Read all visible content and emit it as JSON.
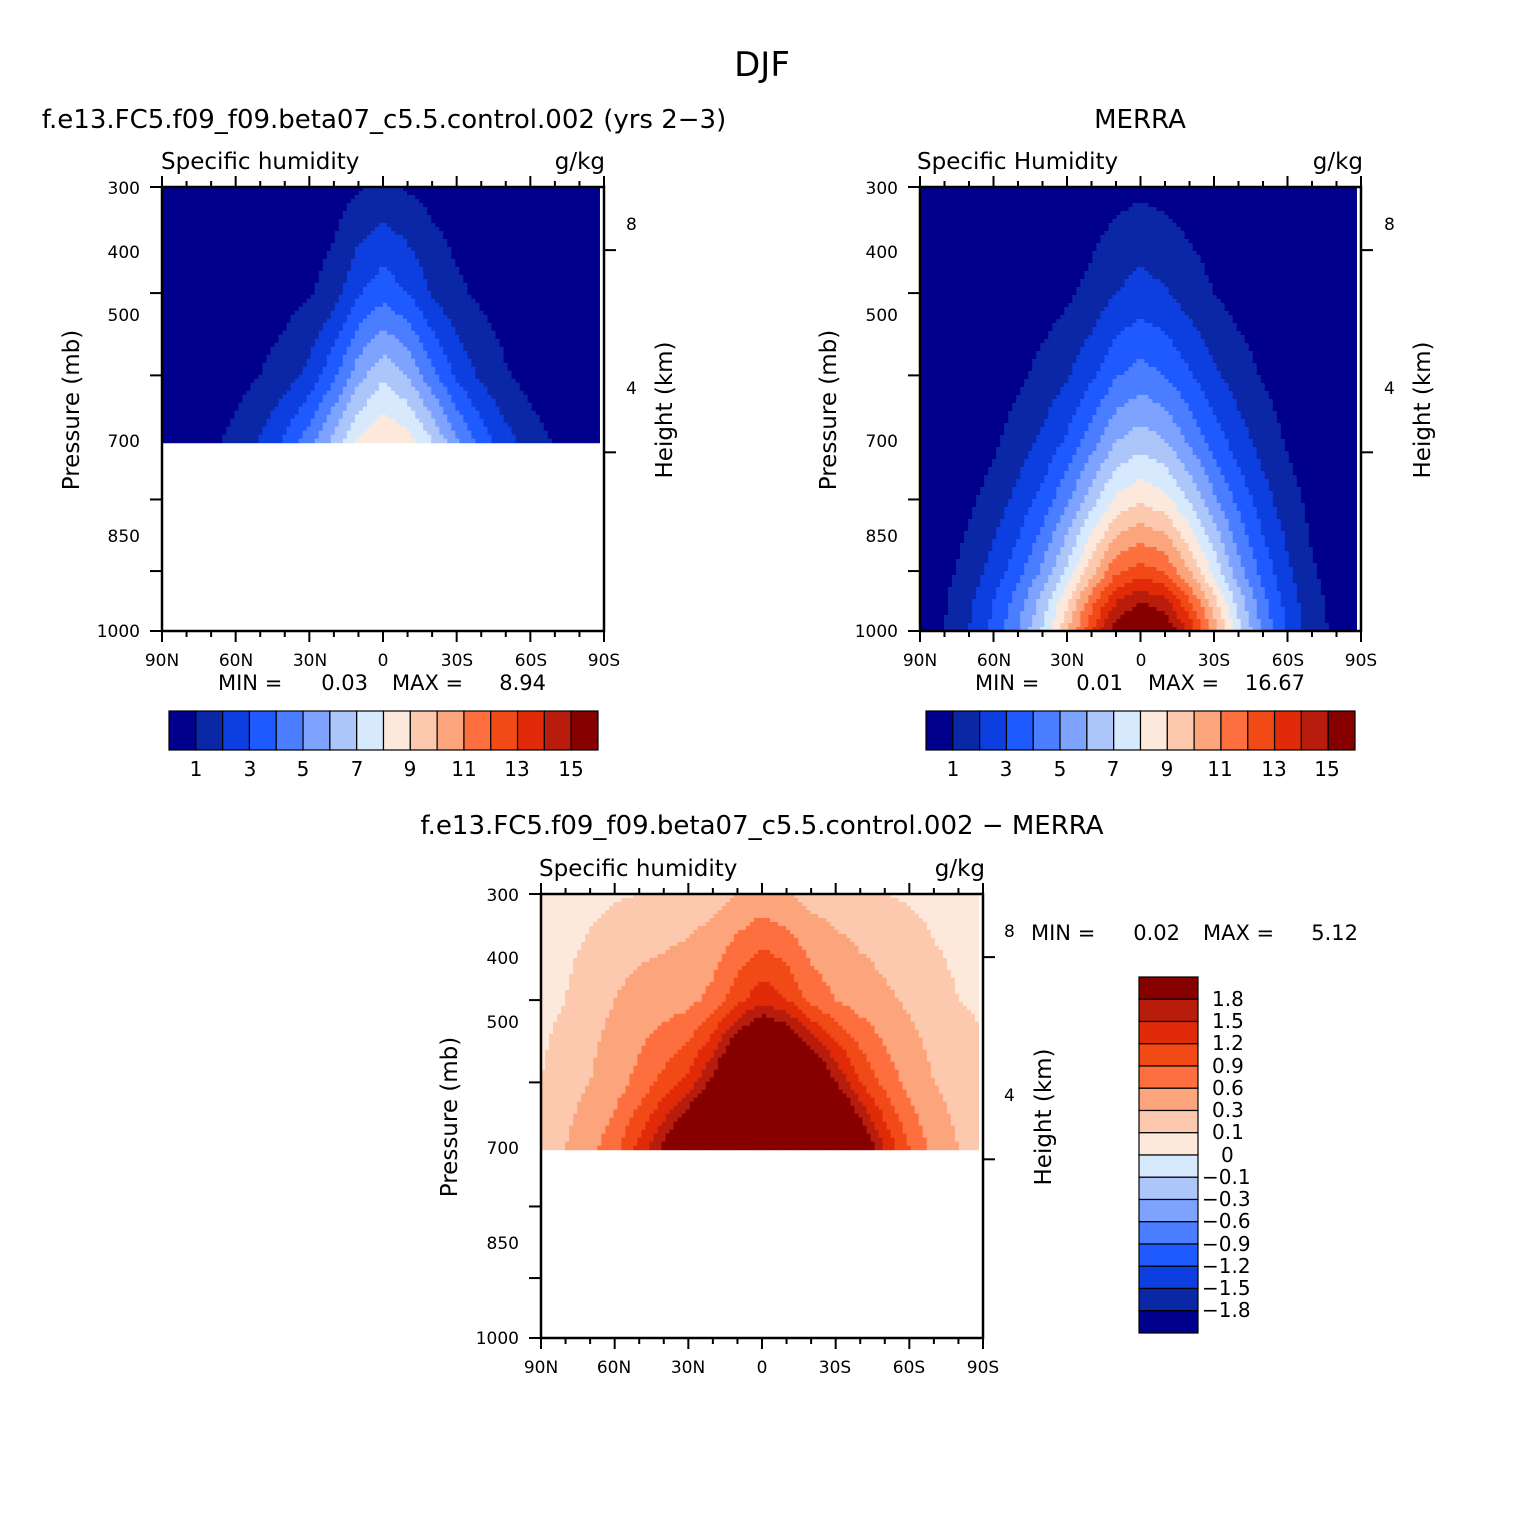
{
  "chart_data": {
    "title": "DJF",
    "colors": {
      "seq": [
        "#00008c",
        "#0a27a6",
        "#0c3ee0",
        "#1f5aff",
        "#4a7dff",
        "#7ea3ff",
        "#adc6fa",
        "#d6e9fd",
        "#fde9dc",
        "#fcc8ae",
        "#fca47b",
        "#fd6f3f",
        "#f14a17",
        "#e12b08",
        "#b71c0c",
        "#860000"
      ],
      "diff": [
        "#00008c",
        "#0a27a6",
        "#0c3ee0",
        "#1f5aff",
        "#4a7dff",
        "#7ea3ff",
        "#adc6fa",
        "#d6e9fd",
        "#fde9dc",
        "#fcc8ae",
        "#fca47b",
        "#fd6f3f",
        "#f14a17",
        "#e12b08",
        "#b71c0c",
        "#860000"
      ],
      "missing": "#ffffff"
    },
    "panels": [
      {
        "id": "model",
        "case_title": "f.e13.FC5.f09_f09.beta07_c5.5.control.002 (yrs 2−3)",
        "long_name": "Specific humidity",
        "units": "g/kg",
        "ylabel": "Pressure (mb)",
        "ylabel_right": "Height (km)",
        "xlabels": [
          "90N",
          "60N",
          "30N",
          "0",
          "30S",
          "60S",
          "90S"
        ],
        "plevels": [
          "300",
          "400",
          "500",
          "700",
          "850",
          "1000"
        ],
        "height_ticks": [
          "8",
          "4"
        ],
        "min_label": "MIN =",
        "min_value": "0.03",
        "max_label": "MAX =",
        "max_value": "8.94",
        "cb_ticks": [
          "1",
          "3",
          "5",
          "7",
          "9",
          "11",
          "13",
          "15"
        ],
        "data_bottom_pressure": 600,
        "field": {
          "lat": [
            90,
            80,
            70,
            60,
            50,
            40,
            30,
            20,
            10,
            0,
            -10,
            -20,
            -30,
            -40,
            -50,
            -60,
            -70,
            -80,
            -88
          ],
          "levels_mb": [
            300,
            400,
            500,
            600
          ],
          "values": [
            [
              0.03,
              0.04,
              0.06,
              0.09,
              0.14,
              0.2,
              0.3,
              0.5,
              0.9,
              1.2,
              0.9,
              0.6,
              0.4,
              0.25,
              0.15,
              0.1,
              0.07,
              0.05,
              0.04
            ],
            [
              0.04,
              0.05,
              0.12,
              0.22,
              0.4,
              0.6,
              0.9,
              1.5,
              2.9,
              3.6,
              3.0,
              1.9,
              1.2,
              0.8,
              0.5,
              0.3,
              0.18,
              0.12,
              0.08
            ],
            [
              0.1,
              0.15,
              0.3,
              0.6,
              1.0,
              1.5,
              2.3,
              3.8,
              5.6,
              6.8,
              6.0,
              4.3,
              2.8,
              1.8,
              1.1,
              0.6,
              0.35,
              0.2,
              0.12
            ],
            [
              0.3,
              0.5,
              0.8,
              1.3,
              2.1,
              3.2,
              4.6,
              6.4,
              8.2,
              8.94,
              8.5,
              7.1,
              5.2,
              3.6,
              2.4,
              1.5,
              0.9,
              0.5,
              0.3
            ]
          ]
        }
      },
      {
        "id": "obs",
        "case_title": "MERRA",
        "long_name": "Specific Humidity",
        "units": "g/kg",
        "ylabel": "Pressure (mb)",
        "ylabel_right": "Height (km)",
        "xlabels": [
          "90N",
          "60N",
          "30N",
          "0",
          "30S",
          "60S",
          "90S"
        ],
        "plevels": [
          "300",
          "400",
          "500",
          "700",
          "850",
          "1000"
        ],
        "height_ticks": [
          "8",
          "4"
        ],
        "min_label": "MIN =",
        "min_value": "0.01",
        "max_label": "MAX =",
        "max_value": "16.67",
        "cb_ticks": [
          "1",
          "3",
          "5",
          "7",
          "9",
          "11",
          "13",
          "15"
        ],
        "data_bottom_pressure": 1000,
        "field": {
          "lat": [
            90,
            80,
            70,
            60,
            50,
            40,
            30,
            20,
            10,
            0,
            -10,
            -20,
            -30,
            -40,
            -50,
            -60,
            -70,
            -80,
            -88
          ],
          "levels_mb": [
            300,
            400,
            500,
            600,
            700,
            850,
            925,
            1000
          ],
          "values": [
            [
              0.01,
              0.02,
              0.03,
              0.05,
              0.08,
              0.12,
              0.2,
              0.35,
              0.6,
              0.8,
              0.65,
              0.45,
              0.3,
              0.18,
              0.1,
              0.06,
              0.04,
              0.02,
              0.01
            ],
            [
              0.02,
              0.04,
              0.08,
              0.15,
              0.3,
              0.5,
              0.8,
              1.3,
              2.0,
              2.4,
              2.1,
              1.5,
              1.0,
              0.6,
              0.35,
              0.2,
              0.1,
              0.05,
              0.03
            ],
            [
              0.05,
              0.1,
              0.2,
              0.4,
              0.8,
              1.3,
              1.9,
              2.8,
              3.9,
              4.4,
              4.0,
              3.1,
              2.2,
              1.5,
              0.9,
              0.5,
              0.25,
              0.12,
              0.06
            ],
            [
              0.1,
              0.2,
              0.4,
              0.8,
              1.5,
              2.2,
              3.2,
              4.6,
              6.0,
              6.6,
              6.1,
              4.9,
              3.6,
              2.5,
              1.6,
              0.9,
              0.45,
              0.22,
              0.1
            ],
            [
              0.2,
              0.4,
              0.8,
              1.4,
              2.3,
              3.3,
              4.8,
              6.5,
              8.2,
              8.8,
              8.3,
              6.9,
              5.2,
              3.7,
              2.4,
              1.4,
              0.7,
              0.35,
              0.15
            ],
            [
              0.4,
              0.7,
              1.4,
              2.4,
              3.6,
              5.2,
              7.2,
              9.6,
              11.8,
              12.4,
              11.9,
              10.0,
              7.7,
              5.4,
              3.6,
              2.2,
              1.1,
              0.6,
              0.3
            ],
            [
              0.5,
              0.9,
              1.8,
              3.0,
              4.5,
              6.4,
              8.8,
              11.6,
              14.0,
              15.0,
              14.4,
              12.2,
              9.4,
              6.6,
              4.3,
              2.6,
              1.3,
              0.7,
              0.4
            ],
            [
              0.6,
              1.0,
              2.0,
              3.3,
              5.0,
              7.1,
              9.8,
              12.9,
              15.6,
              16.67,
              16.1,
              13.7,
              10.6,
              7.4,
              4.8,
              2.9,
              1.4,
              0.8,
              0.5
            ]
          ]
        }
      },
      {
        "id": "diff",
        "case_title": "f.e13.FC5.f09_f09.beta07_c5.5.control.002 − MERRA",
        "long_name": "Specific humidity",
        "units": "g/kg",
        "ylabel": "Pressure (mb)",
        "ylabel_right": "Height (km)",
        "xlabels": [
          "90N",
          "60N",
          "30N",
          "0",
          "30S",
          "60S",
          "90S"
        ],
        "plevels": [
          "300",
          "400",
          "500",
          "700",
          "850",
          "1000"
        ],
        "height_ticks": [
          "8",
          "4"
        ],
        "min_label": "MIN =",
        "min_value": "0.02",
        "max_label": "MAX =",
        "max_value": "5.12",
        "cb_ticks": [
          "1.8",
          "1.5",
          "1.2",
          "0.9",
          "0.6",
          "0.3",
          "0.1",
          "0",
          "−0.1",
          "−0.3",
          "−0.6",
          "−0.9",
          "−1.2",
          "−1.5",
          "−1.8"
        ],
        "data_bottom_pressure": 600,
        "field": {
          "lat": [
            90,
            80,
            70,
            60,
            50,
            40,
            30,
            20,
            10,
            0,
            -10,
            -20,
            -30,
            -40,
            -50,
            -60,
            -70,
            -80,
            -88
          ],
          "levels_mb": [
            300,
            400,
            500,
            600
          ],
          "values": [
            [
              0.02,
              0.03,
              0.05,
              0.08,
              0.1,
              0.12,
              0.15,
              0.18,
              0.3,
              0.4,
              0.32,
              0.2,
              0.15,
              0.12,
              0.1,
              0.08,
              0.06,
              0.05,
              0.04
            ],
            [
              0.05,
              0.1,
              0.2,
              0.3,
              0.4,
              0.45,
              0.5,
              0.7,
              1.1,
              1.4,
              1.2,
              0.8,
              0.6,
              0.45,
              0.35,
              0.25,
              0.15,
              0.1,
              0.08
            ],
            [
              0.1,
              0.2,
              0.3,
              0.45,
              0.7,
              1.0,
              1.3,
              1.9,
              2.9,
              3.6,
              3.3,
              2.5,
              1.8,
              1.2,
              0.8,
              0.5,
              0.3,
              0.2,
              0.15
            ],
            [
              0.15,
              0.3,
              0.5,
              0.8,
              1.3,
              1.9,
              2.6,
              3.6,
              4.6,
              5.12,
              4.9,
              4.2,
              3.3,
              2.3,
              1.5,
              0.9,
              0.5,
              0.3,
              0.2
            ]
          ]
        }
      }
    ]
  }
}
